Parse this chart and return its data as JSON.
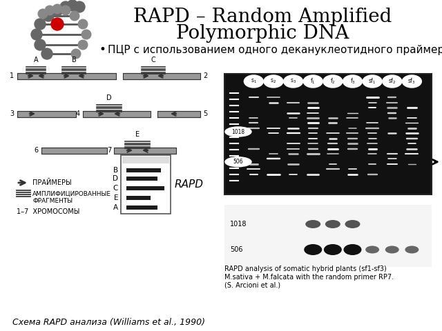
{
  "title_line1": "RAPD – Random Amplified",
  "title_line2": "Polymorphic DNA",
  "bullet_text": "ПЦР с использованием одного декануклеотидного праймера",
  "bottom_left_caption": "Схема RAPD анализа (Williams et al., 1990)",
  "bottom_right_line1": "RAPD analysis of somatic hybrid plants (sf1-sf3)",
  "bottom_right_line2": "M.sativa + M.falcata with the random primer RP7.",
  "bottom_right_line3": "(S. Arcioni et al.)",
  "legend_primer": "ПРАЙМЕРЫ",
  "legend_amp1": "АМПЛИФИЦИРОВАННЫЕ",
  "legend_amp2": "ФРАГМЕНТЫ",
  "legend_chrom": "1–7  ХРОМОСОМЫ",
  "rapd_label": "RAPD",
  "gel_bands": [
    "B",
    "D",
    "C",
    "E",
    "A"
  ],
  "bg_color": "#ffffff",
  "title_fontsize": 20,
  "bullet_fontsize": 11,
  "caption_fontsize": 9
}
